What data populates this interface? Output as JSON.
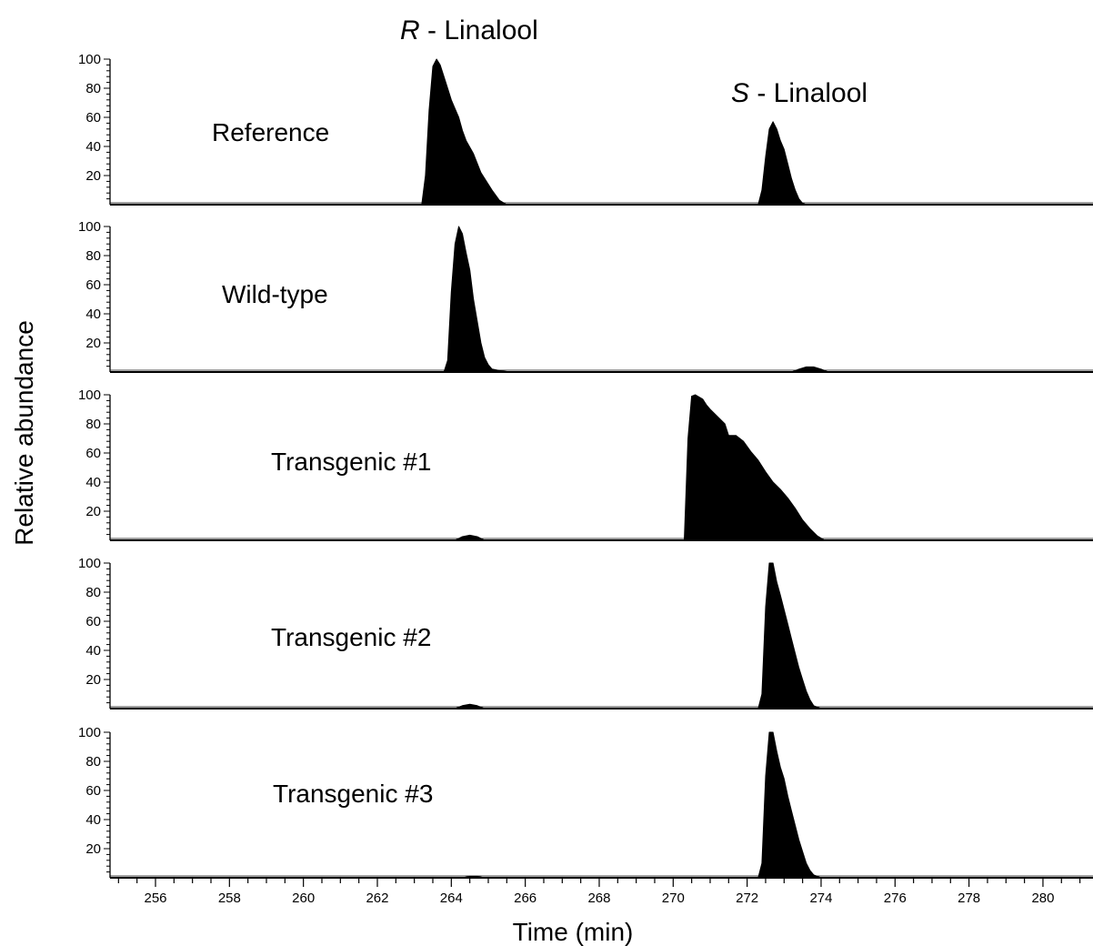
{
  "chart_data": {
    "type": "area",
    "xlabel": "Time (min)",
    "ylabel": "Relative abundance",
    "xlim": [
      25.46,
      28.15
    ],
    "ylim": [
      0,
      100
    ],
    "x_ticks": [
      "256",
      "258",
      "260",
      "262",
      "264",
      "266",
      "268",
      "270",
      "272",
      "274",
      "276",
      "278",
      "280"
    ],
    "y_ticks": [
      "100",
      "80",
      "60",
      "40",
      "20"
    ],
    "peak_labels": [
      {
        "italic": "R",
        "text": " - Linalool"
      },
      {
        "italic": "S",
        "text": " - Linalool"
      }
    ],
    "panels": [
      {
        "label": "Reference",
        "peaks": [
          {
            "name": "R-Linalool",
            "x": [
              26.32,
              26.33,
              26.34,
              26.35,
              26.36,
              26.37,
              26.38,
              26.39,
              26.4,
              26.41,
              26.42,
              26.43,
              26.44,
              26.46,
              26.48,
              26.51,
              26.53,
              26.55
            ],
            "y": [
              0,
              20,
              65,
              95,
              100,
              96,
              88,
              80,
              72,
              66,
              60,
              51,
              44,
              35,
              22,
              10,
              3,
              0
            ]
          },
          {
            "name": "S-Linalool",
            "x": [
              27.23,
              27.24,
              27.25,
              27.26,
              27.27,
              27.28,
              27.29,
              27.3,
              27.31,
              27.32,
              27.33,
              27.34,
              27.35,
              27.36
            ],
            "y": [
              0,
              10,
              33,
              52,
              57,
              52,
              44,
              38,
              28,
              18,
              10,
              4,
              1,
              0
            ]
          }
        ]
      },
      {
        "label": "Wild-type",
        "peaks": [
          {
            "name": "R-Linalool",
            "x": [
              26.38,
              26.39,
              26.4,
              26.41,
              26.42,
              26.43,
              26.44,
              26.45,
              26.46,
              26.47,
              26.48,
              26.49,
              26.5,
              26.51,
              26.53,
              26.56
            ],
            "y": [
              0,
              8,
              55,
              88,
              100,
              95,
              82,
              70,
              50,
              35,
              20,
              10,
              5,
              2,
              1,
              0
            ]
          },
          {
            "name": "S-Linalool",
            "x": [
              27.32,
              27.34,
              27.36,
              27.38,
              27.4,
              27.42
            ],
            "y": [
              0,
              2,
              3.5,
              3.5,
              2,
              0
            ]
          }
        ]
      },
      {
        "label": "Transgenic #1",
        "peaks": [
          {
            "name": "R-Linalool",
            "x": [
              26.41,
              26.43,
              26.45,
              26.47,
              26.49
            ],
            "y": [
              0,
              2.5,
              3.5,
              2.5,
              0
            ]
          },
          {
            "name": "S-Linalool",
            "x": [
              27.03,
              27.04,
              27.05,
              27.06,
              27.08,
              27.09,
              27.1,
              27.12,
              27.14,
              27.15,
              27.17,
              27.19,
              27.21,
              27.23,
              27.25,
              27.27,
              27.29,
              27.31,
              27.33,
              27.35,
              27.37,
              27.39,
              27.41
            ],
            "y": [
              0,
              70,
              99,
              100,
              97,
              93,
              90,
              85,
              80,
              72,
              72,
              68,
              61,
              55,
              47,
              40,
              35,
              29,
              22,
              14,
              8,
              3,
              0
            ]
          }
        ]
      },
      {
        "label": "Transgenic #2",
        "peaks": [
          {
            "name": "R-Linalool",
            "x": [
              26.41,
              26.43,
              26.45,
              26.47,
              26.49
            ],
            "y": [
              0,
              2,
              3,
              2,
              0
            ]
          },
          {
            "name": "S-Linalool",
            "x": [
              27.23,
              27.24,
              27.25,
              27.26,
              27.27,
              27.28,
              27.29,
              27.3,
              27.31,
              27.32,
              27.33,
              27.34,
              27.35,
              27.36,
              27.37,
              27.38,
              27.4
            ],
            "y": [
              0,
              10,
              70,
              100,
              100,
              87,
              78,
              68,
              58,
              48,
              38,
              28,
              20,
              12,
              6,
              2,
              0
            ]
          }
        ]
      },
      {
        "label": "Transgenic #3",
        "peaks": [
          {
            "name": "R-Linalool",
            "x": [
              26.43,
              26.45,
              26.47,
              26.49
            ],
            "y": [
              0,
              1,
              1,
              0
            ]
          },
          {
            "name": "S-Linalool",
            "x": [
              27.23,
              27.24,
              27.25,
              27.26,
              27.27,
              27.28,
              27.29,
              27.3,
              27.31,
              27.32,
              27.33,
              27.34,
              27.35,
              27.36,
              27.37,
              27.38,
              27.4
            ],
            "y": [
              0,
              10,
              70,
              100,
              100,
              87,
              76,
              68,
              56,
              46,
              36,
              26,
              18,
              10,
              5,
              2,
              0
            ]
          }
        ]
      }
    ]
  }
}
